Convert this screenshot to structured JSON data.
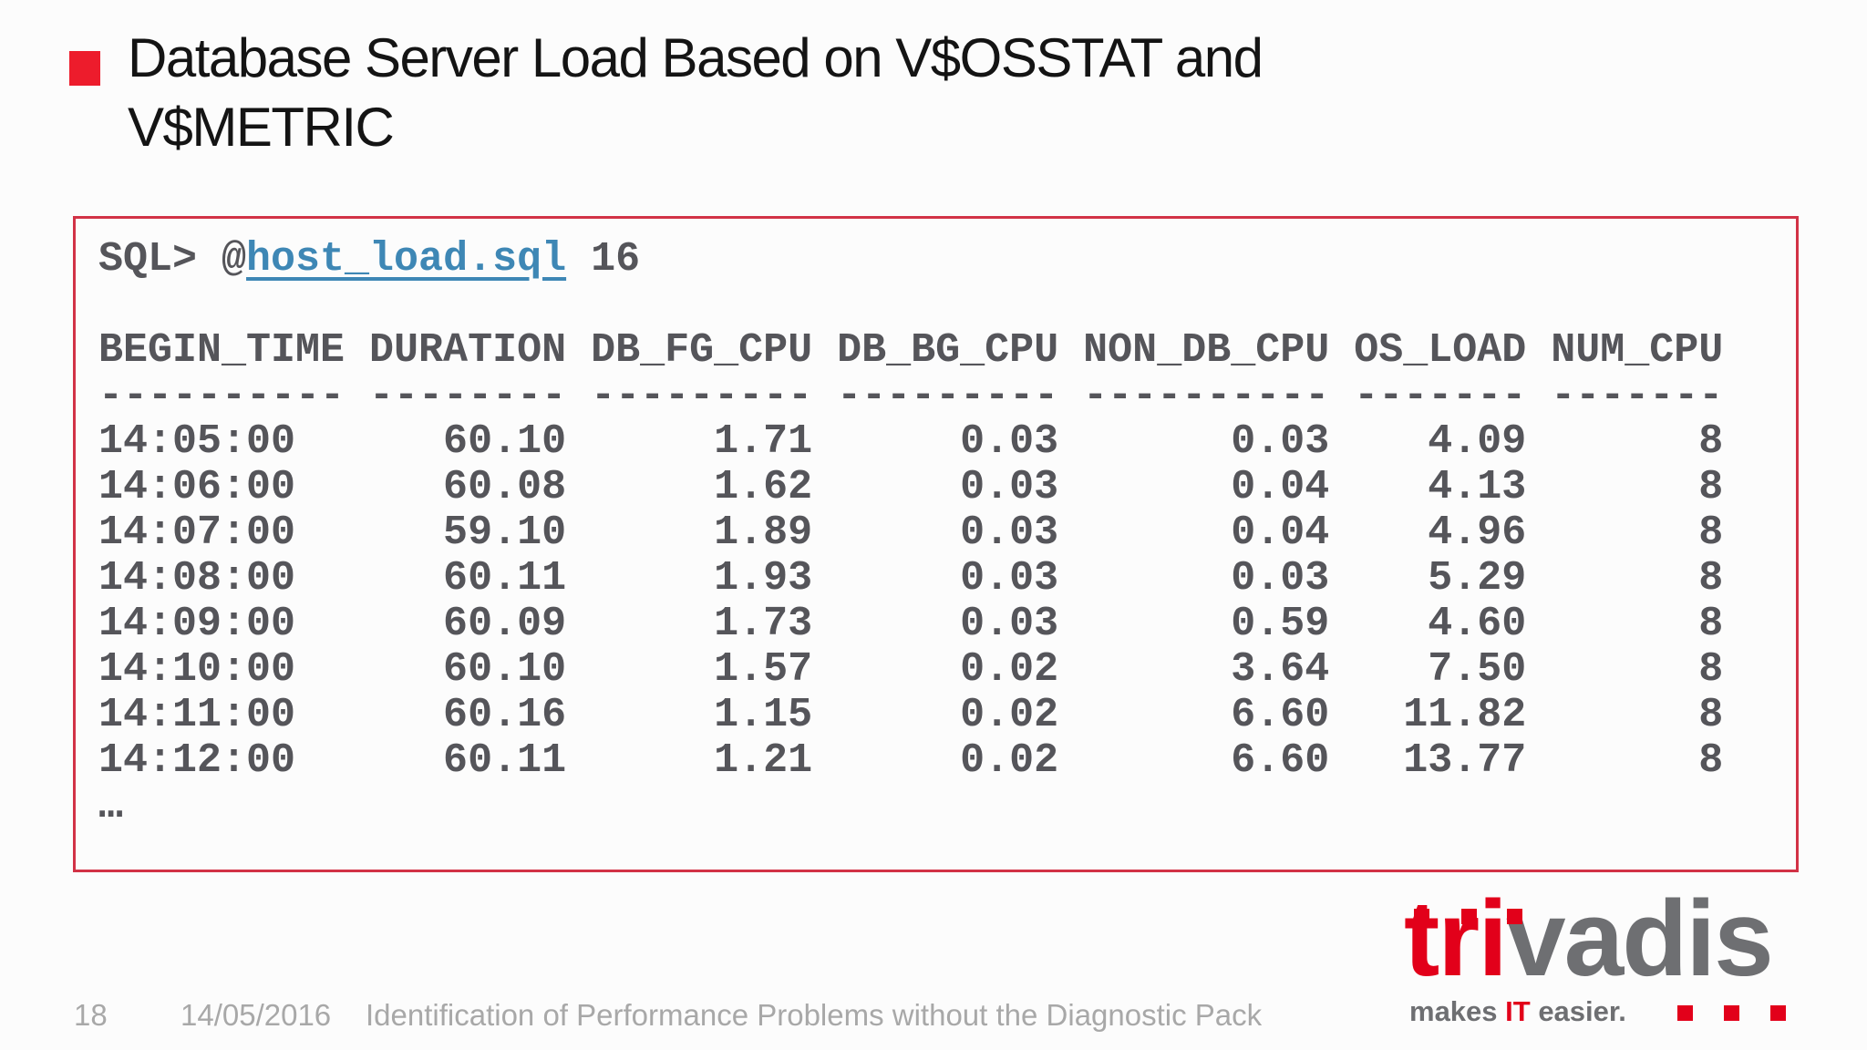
{
  "slide": {
    "title_line1": "Database Server Load Based on V$OSSTAT and",
    "title_line2": "V$METRIC"
  },
  "terminal": {
    "prompt_prefix": "SQL> @",
    "script_link": "host_load.sql",
    "prompt_suffix": " 16",
    "ellipsis": "…",
    "columns": [
      {
        "label": "BEGIN_TIME",
        "width": 10,
        "align": "left"
      },
      {
        "label": "DURATION",
        "width": 8,
        "align": "right"
      },
      {
        "label": "DB_FG_CPU",
        "width": 9,
        "align": "right"
      },
      {
        "label": "DB_BG_CPU",
        "width": 9,
        "align": "right"
      },
      {
        "label": "NON_DB_CPU",
        "width": 10,
        "align": "right"
      },
      {
        "label": "OS_LOAD",
        "width": 7,
        "align": "right"
      },
      {
        "label": "NUM_CPU",
        "width": 7,
        "align": "right"
      }
    ],
    "rows": [
      [
        "14:05:00",
        "60.10",
        "1.71",
        "0.03",
        "0.03",
        "4.09",
        "8"
      ],
      [
        "14:06:00",
        "60.08",
        "1.62",
        "0.03",
        "0.04",
        "4.13",
        "8"
      ],
      [
        "14:07:00",
        "59.10",
        "1.89",
        "0.03",
        "0.04",
        "4.96",
        "8"
      ],
      [
        "14:08:00",
        "60.11",
        "1.93",
        "0.03",
        "0.03",
        "5.29",
        "8"
      ],
      [
        "14:09:00",
        "60.09",
        "1.73",
        "0.03",
        "0.59",
        "4.60",
        "8"
      ],
      [
        "14:10:00",
        "60.10",
        "1.57",
        "0.02",
        "3.64",
        "7.50",
        "8"
      ],
      [
        "14:11:00",
        "60.16",
        "1.15",
        "0.02",
        "6.60",
        "11.82",
        "8"
      ],
      [
        "14:12:00",
        "60.11",
        "1.21",
        "0.02",
        "6.60",
        "13.77",
        "8"
      ]
    ]
  },
  "footer": {
    "page_number": "18",
    "date": "14/05/2016",
    "deck_title": "Identification of Performance Problems without the Diagnostic Pack"
  },
  "logo": {
    "word_red": "tri",
    "word_gray": "vadis",
    "tagline_pre": "makes ",
    "tagline_it": "IT",
    "tagline_post": " easier."
  },
  "colors": {
    "bullet_red": "#ed1c2c",
    "box_border_red": "#d23246",
    "terminal_text_gray": "#55555a",
    "link_blue": "#3e87b5",
    "footer_gray": "#a8a8a8",
    "logo_gray": "#6e6f72",
    "logo_red": "#e2001a",
    "title_black": "#141414"
  }
}
